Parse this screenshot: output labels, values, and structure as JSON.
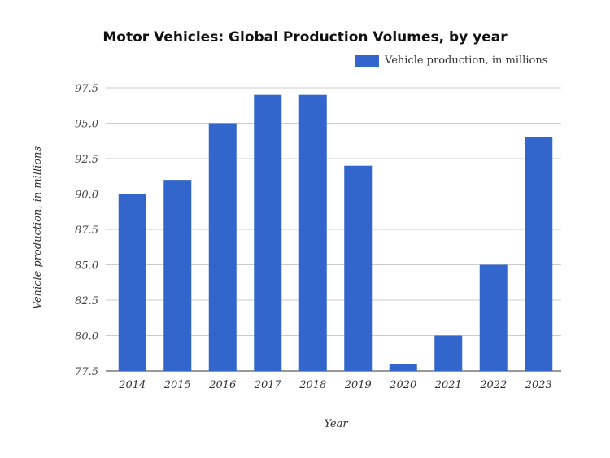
{
  "chart_data": {
    "type": "bar",
    "title": "Motor Vehicles: Global Production Volumes, by year",
    "xlabel": "Year",
    "ylabel": "Vehicle production, in millions",
    "categories": [
      "2014",
      "2015",
      "2016",
      "2017",
      "2018",
      "2019",
      "2020",
      "2021",
      "2022",
      "2023"
    ],
    "series": [
      {
        "name": "Vehicle production, in millions",
        "values": [
          90.0,
          91.0,
          95.0,
          97.0,
          97.0,
          92.0,
          78.0,
          80.0,
          85.0,
          94.0
        ],
        "color": "#3366cc"
      }
    ],
    "ylim": [
      77.5,
      97.5
    ],
    "yticks": [
      "77.5",
      "80.0",
      "82.5",
      "85.0",
      "87.5",
      "90.0",
      "92.5",
      "95.0",
      "97.5"
    ],
    "grid": true,
    "legend_position": "top-right"
  }
}
